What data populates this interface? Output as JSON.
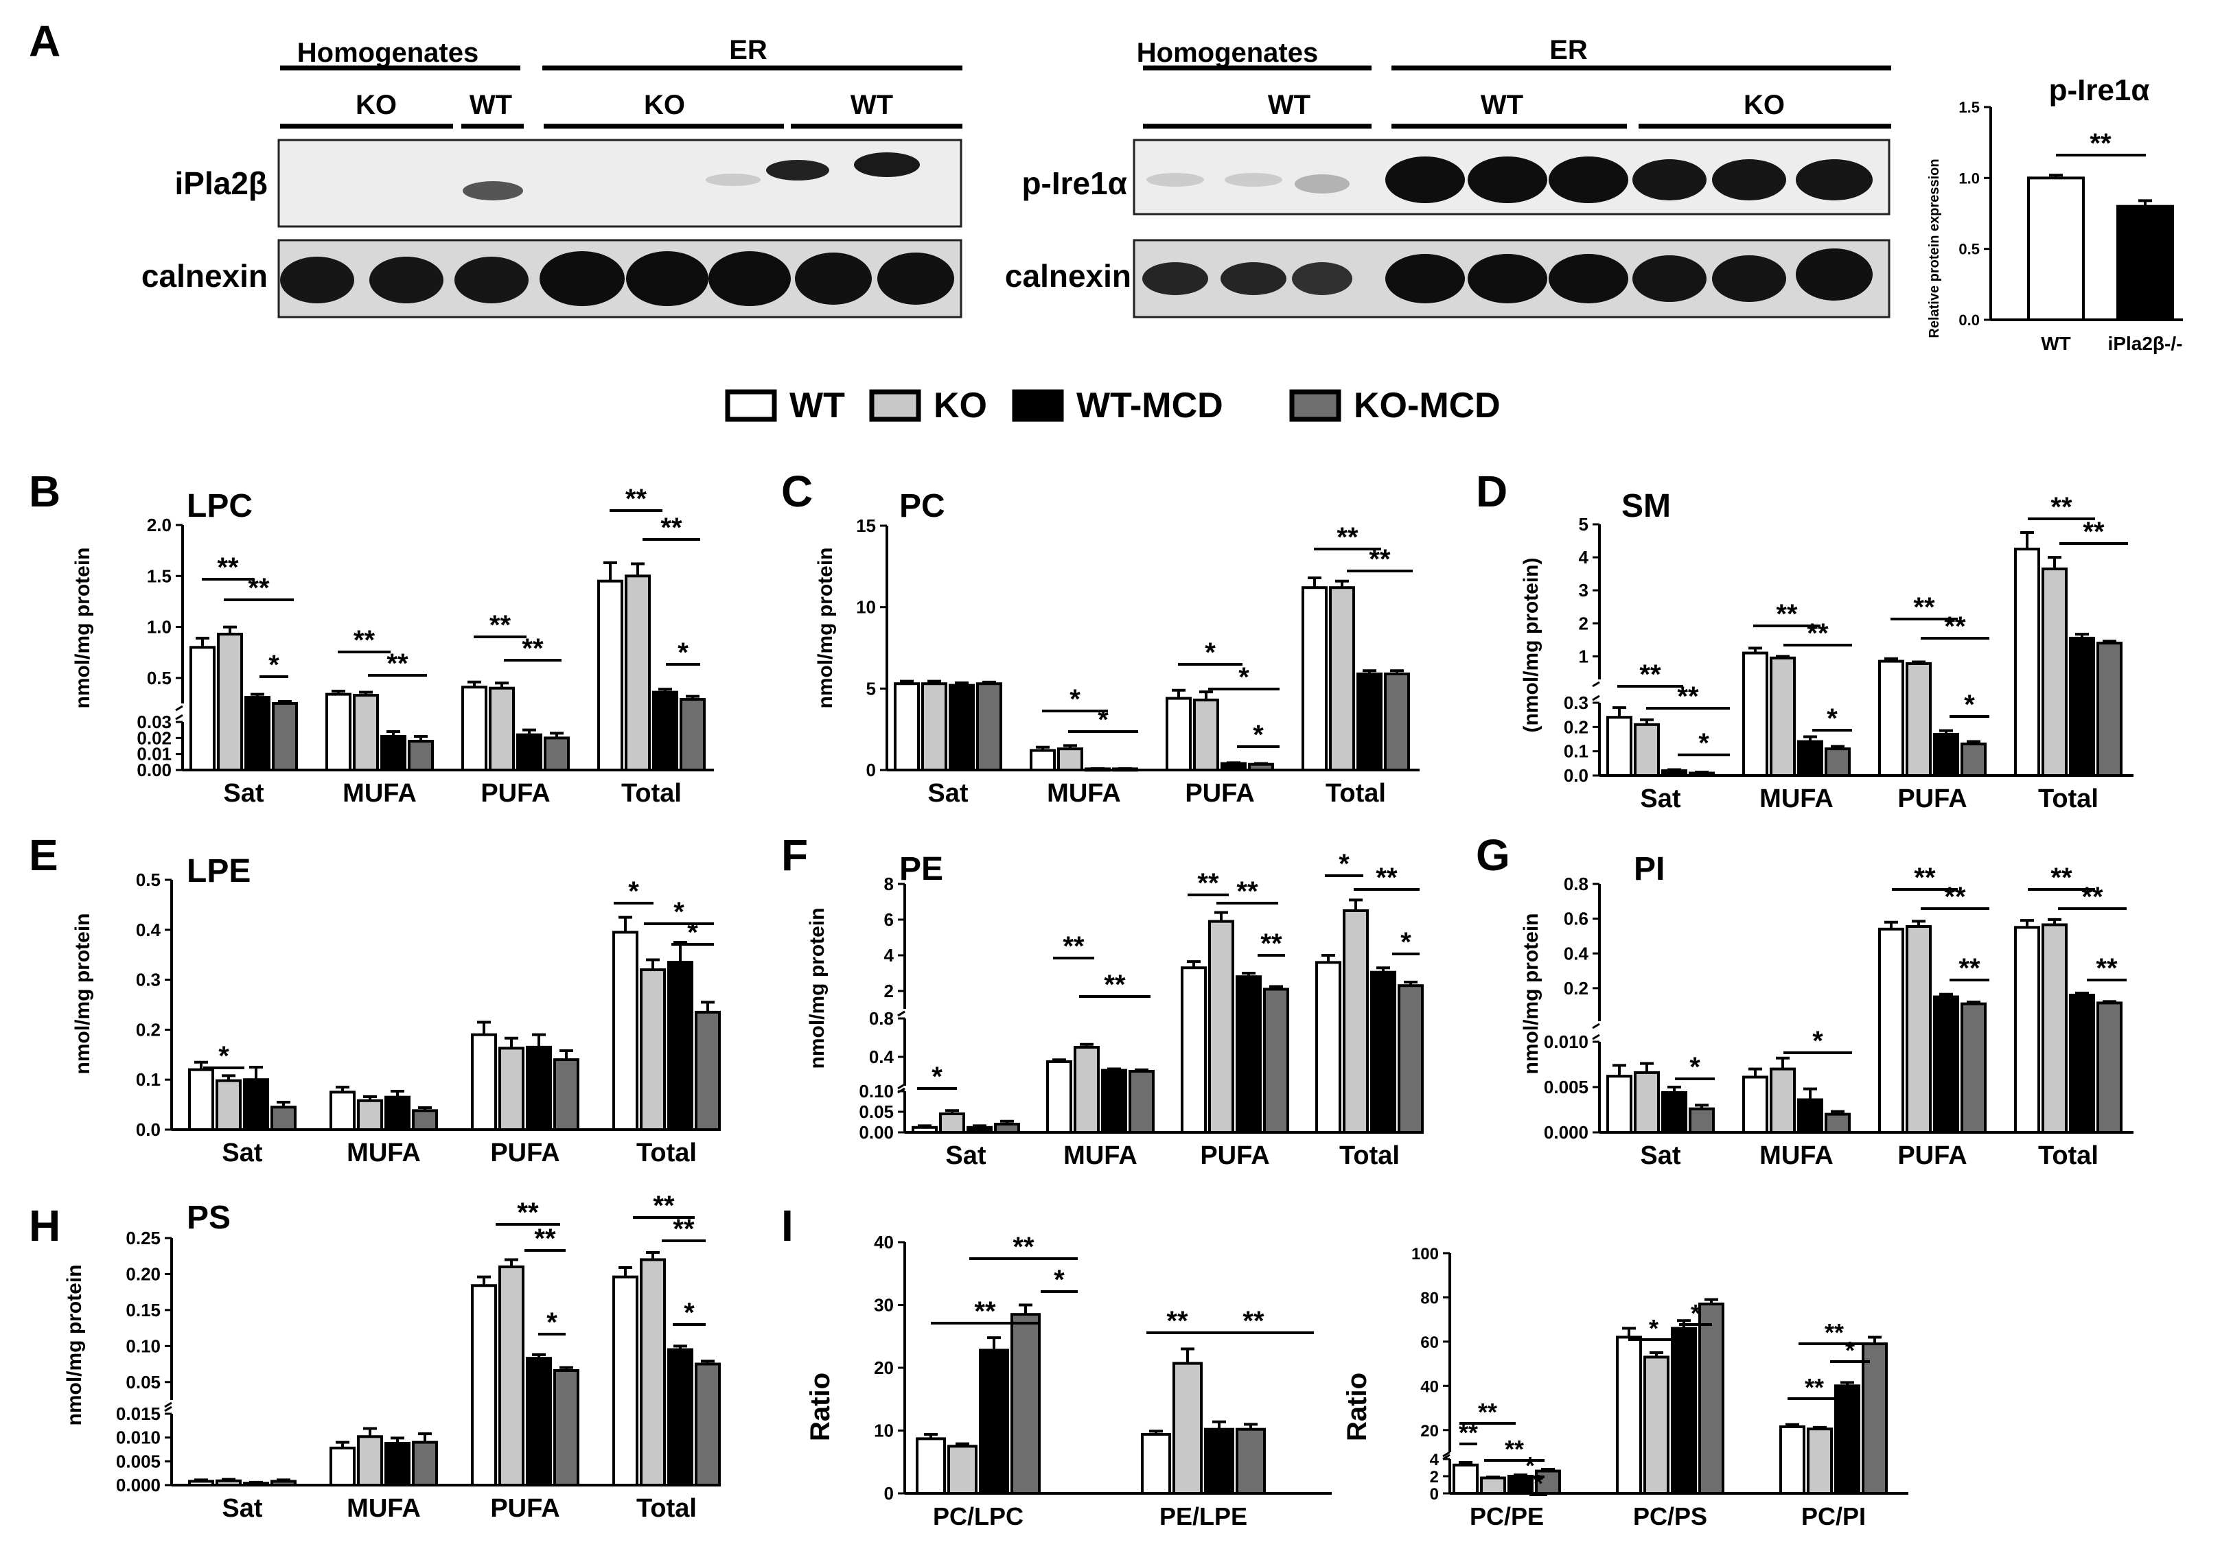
{
  "figure": {
    "panel_a_label": "A",
    "legend": [
      {
        "label": "WT",
        "fill": "#ffffff"
      },
      {
        "label": "KO",
        "fill": "#c8c8c8"
      },
      {
        "label": "WT-MCD",
        "fill": "#000000"
      },
      {
        "label": "KO-MCD",
        "fill": "#6e6e6e"
      }
    ],
    "blot1": {
      "header_homogenates": "Homogenates",
      "header_er": "ER",
      "sub_labels": [
        "KO",
        "WT",
        "KO",
        "WT"
      ],
      "row1_label": "iPla2β",
      "row2_label": "calnexin"
    },
    "blot2": {
      "header_homogenates": "Homogenates",
      "header_er": "ER",
      "sub_labels": [
        "WT",
        "WT",
        "KO"
      ],
      "row1_label": "p-Ire1α",
      "row2_label": "calnexin"
    }
  },
  "colors": {
    "WT": "#ffffff",
    "KO": "#c8c8c8",
    "WT-MCD": "#000000",
    "KO-MCD": "#6e6e6e",
    "axis": "#000000",
    "background": "#ffffff"
  },
  "chart_data": [
    {
      "id": "pire1a",
      "type": "bar",
      "title": "p-Ire1α",
      "ylabel": "Relative protein expression",
      "categories": [
        "WT",
        "iPla2β-/-"
      ],
      "values": [
        1.0,
        0.8
      ],
      "errors": [
        0.02,
        0.04
      ],
      "ylim": [
        0,
        1.5
      ],
      "yticks": [
        "0.0",
        "0.5",
        "1.0",
        "1.5"
      ],
      "fills": [
        "#ffffff",
        "#000000"
      ],
      "sig": [
        {
          "label": "**"
        }
      ]
    },
    {
      "id": "B",
      "panel": "B",
      "type": "bar",
      "title": "LPC",
      "ylabel": "nmol/mg protein",
      "xlabel": "",
      "categories": [
        "Sat",
        "MUFA",
        "PUFA",
        "Total"
      ],
      "series": [
        {
          "name": "WT",
          "values": [
            0.8,
            0.34,
            0.41,
            1.45
          ],
          "errors": [
            0.09,
            0.03,
            0.05,
            0.18
          ]
        },
        {
          "name": "KO",
          "values": [
            0.93,
            0.33,
            0.4,
            1.5
          ],
          "errors": [
            0.07,
            0.03,
            0.05,
            0.12
          ]
        },
        {
          "name": "WT-MCD",
          "values": [
            0.31,
            0.021,
            0.022,
            0.36
          ],
          "errors": [
            0.03,
            0.003,
            0.003,
            0.03
          ]
        },
        {
          "name": "KO-MCD",
          "values": [
            0.25,
            0.018,
            0.02,
            0.29
          ],
          "errors": [
            0.02,
            0.003,
            0.003,
            0.03
          ]
        }
      ],
      "y_break": true,
      "ylim_lower": [
        0,
        0.03
      ],
      "ylim_upper": [
        0.25,
        2.0
      ],
      "yticks_lower": [
        "0.00",
        "0.01",
        "0.02",
        "0.03"
      ],
      "yticks_upper": [
        "0.5",
        "1.0",
        "1.5",
        "2.0"
      ],
      "sig": [
        "**",
        "**",
        "*",
        "**",
        "**",
        "**",
        "**",
        "**",
        "**",
        "*"
      ]
    },
    {
      "id": "C",
      "panel": "C",
      "type": "bar",
      "title": "PC",
      "ylabel": "nmol/mg protein",
      "xlabel": "",
      "categories": [
        "Sat",
        "MUFA",
        "PUFA",
        "Total"
      ],
      "series": [
        {
          "name": "WT",
          "values": [
            5.3,
            1.2,
            4.4,
            11.2
          ],
          "errors": [
            0.15,
            0.2,
            0.5,
            0.6
          ]
        },
        {
          "name": "KO",
          "values": [
            5.3,
            1.3,
            4.3,
            11.2
          ],
          "errors": [
            0.15,
            0.2,
            0.5,
            0.4
          ]
        },
        {
          "name": "WT-MCD",
          "values": [
            5.2,
            0.07,
            0.4,
            5.9
          ],
          "errors": [
            0.15,
            0.02,
            0.05,
            0.2
          ]
        },
        {
          "name": "KO-MCD",
          "values": [
            5.3,
            0.07,
            0.35,
            5.9
          ],
          "errors": [
            0.1,
            0.02,
            0.05,
            0.2
          ]
        }
      ],
      "ylim": [
        0,
        15
      ],
      "yticks": [
        "0",
        "5",
        "10",
        "15"
      ],
      "sig": [
        "*",
        "*",
        "*",
        "*",
        "*",
        "**",
        "**"
      ]
    },
    {
      "id": "D",
      "panel": "D",
      "type": "bar",
      "title": "SM",
      "ylabel": "(nmol/mg protein)",
      "xlabel": "",
      "categories": [
        "Sat",
        "MUFA",
        "PUFA",
        "Total"
      ],
      "series": [
        {
          "name": "WT",
          "values": [
            0.24,
            1.1,
            0.85,
            4.25
          ],
          "errors": [
            0.04,
            0.15,
            0.08,
            0.5
          ]
        },
        {
          "name": "KO",
          "values": [
            0.21,
            0.95,
            0.78,
            3.65
          ],
          "errors": [
            0.02,
            0.05,
            0.05,
            0.35
          ]
        },
        {
          "name": "WT-MCD",
          "values": [
            0.02,
            0.14,
            0.17,
            1.55
          ],
          "errors": [
            0.004,
            0.02,
            0.015,
            0.12
          ]
        },
        {
          "name": "KO-MCD",
          "values": [
            0.01,
            0.11,
            0.13,
            1.4
          ],
          "errors": [
            0.004,
            0.01,
            0.01,
            0.06
          ]
        }
      ],
      "y_break": true,
      "ylim_lower": [
        0,
        0.3
      ],
      "ylim_upper": [
        0.3,
        5
      ],
      "yticks_lower": [
        "0.0",
        "0.1",
        "0.2",
        "0.3"
      ],
      "yticks_upper": [
        "1",
        "2",
        "3",
        "4",
        "5"
      ],
      "sig": [
        "**",
        "**",
        "*",
        "**",
        "**",
        "*",
        "**",
        "**",
        "*",
        "**",
        "**"
      ]
    },
    {
      "id": "E",
      "panel": "E",
      "type": "bar",
      "title": "LPE",
      "ylabel": "nmol/mg protein",
      "xlabel": "",
      "categories": [
        "Sat",
        "MUFA",
        "PUFA",
        "Total"
      ],
      "series": [
        {
          "name": "WT",
          "values": [
            0.12,
            0.075,
            0.19,
            0.395
          ],
          "errors": [
            0.015,
            0.01,
            0.025,
            0.03
          ]
        },
        {
          "name": "KO",
          "values": [
            0.098,
            0.058,
            0.163,
            0.32
          ],
          "errors": [
            0.01,
            0.008,
            0.02,
            0.02
          ]
        },
        {
          "name": "WT-MCD",
          "values": [
            0.1,
            0.065,
            0.165,
            0.335
          ],
          "errors": [
            0.025,
            0.012,
            0.025,
            0.04
          ]
        },
        {
          "name": "KO-MCD",
          "values": [
            0.045,
            0.038,
            0.14,
            0.235
          ],
          "errors": [
            0.01,
            0.006,
            0.018,
            0.02
          ]
        }
      ],
      "ylim": [
        0,
        0.5
      ],
      "yticks": [
        "0.0",
        "0.1",
        "0.2",
        "0.3",
        "0.4",
        "0.5"
      ],
      "sig": [
        "*",
        "*",
        "*",
        "*"
      ]
    },
    {
      "id": "F",
      "panel": "F",
      "type": "bar",
      "title": "PE",
      "ylabel": "nmol/mg protein",
      "xlabel": "",
      "categories": [
        "Sat",
        "MUFA",
        "PUFA",
        "Total"
      ],
      "series": [
        {
          "name": "WT",
          "values": [
            0.012,
            0.35,
            3.3,
            3.6
          ],
          "errors": [
            0.004,
            0.02,
            0.35,
            0.4
          ]
        },
        {
          "name": "KO",
          "values": [
            0.045,
            0.5,
            5.9,
            6.5
          ],
          "errors": [
            0.008,
            0.03,
            0.5,
            0.6
          ]
        },
        {
          "name": "WT-MCD",
          "values": [
            0.012,
            0.26,
            2.8,
            3.05
          ],
          "errors": [
            0.004,
            0.015,
            0.2,
            0.25
          ]
        },
        {
          "name": "KO-MCD",
          "values": [
            0.02,
            0.25,
            2.1,
            2.3
          ],
          "errors": [
            0.007,
            0.015,
            0.15,
            0.2
          ]
        }
      ],
      "y_break": true,
      "ylim_lower": [
        0,
        0.1
      ],
      "ylim_mid": [
        0.1,
        0.8
      ],
      "ylim_upper": [
        1,
        8
      ],
      "yticks_lower": [
        "0.00",
        "0.05",
        "0.10"
      ],
      "yticks_mid": [
        "0.4",
        "0.8"
      ],
      "yticks_upper": [
        "2",
        "4",
        "6",
        "8"
      ],
      "sig": [
        "*",
        "**",
        "**",
        "**",
        "**",
        "**",
        "*",
        "**",
        "*"
      ]
    },
    {
      "id": "G",
      "panel": "G",
      "type": "bar",
      "title": "PI",
      "ylabel": "nmol/mg protein",
      "xlabel": "",
      "categories": [
        "Sat",
        "MUFA",
        "PUFA",
        "Total"
      ],
      "series": [
        {
          "name": "WT",
          "values": [
            0.0062,
            0.0061,
            0.54,
            0.55
          ],
          "errors": [
            0.0012,
            0.0009,
            0.04,
            0.04
          ]
        },
        {
          "name": "KO",
          "values": [
            0.0066,
            0.007,
            0.555,
            0.565
          ],
          "errors": [
            0.001,
            0.0012,
            0.03,
            0.03
          ]
        },
        {
          "name": "WT-MCD",
          "values": [
            0.0044,
            0.0036,
            0.15,
            0.16
          ],
          "errors": [
            0.0006,
            0.0012,
            0.015,
            0.012
          ]
        },
        {
          "name": "KO-MCD",
          "values": [
            0.0026,
            0.002,
            0.11,
            0.115
          ],
          "errors": [
            0.0004,
            0.0003,
            0.01,
            0.008
          ]
        }
      ],
      "y_break": true,
      "ylim_lower": [
        0,
        0.01
      ],
      "ylim_upper": [
        0.01,
        0.8
      ],
      "yticks_lower": [
        "0.000",
        "0.005",
        "0.010"
      ],
      "yticks_upper": [
        "0.2",
        "0.4",
        "0.6",
        "0.8"
      ],
      "sig": [
        "*",
        "*",
        "**",
        "**",
        "**",
        "**",
        "**",
        "**"
      ]
    },
    {
      "id": "H",
      "panel": "H",
      "type": "bar",
      "title": "PS",
      "ylabel": "nmol/mg protein",
      "xlabel": "",
      "categories": [
        "Sat",
        "MUFA",
        "PUFA",
        "Total"
      ],
      "series": [
        {
          "name": "WT",
          "values": [
            0.0008,
            0.0078,
            0.184,
            0.196
          ],
          "errors": [
            0.0003,
            0.0012,
            0.012,
            0.013
          ]
        },
        {
          "name": "KO",
          "values": [
            0.0009,
            0.0102,
            0.21,
            0.22
          ],
          "errors": [
            0.0003,
            0.0017,
            0.01,
            0.01
          ]
        },
        {
          "name": "WT-MCD",
          "values": [
            0.0004,
            0.0088,
            0.083,
            0.095
          ],
          "errors": [
            0.0002,
            0.0011,
            0.005,
            0.005
          ]
        },
        {
          "name": "KO-MCD",
          "values": [
            0.0008,
            0.009,
            0.066,
            0.075
          ],
          "errors": [
            0.0003,
            0.0018,
            0.004,
            0.004
          ]
        }
      ],
      "y_break": true,
      "ylim_lower": [
        0,
        0.015
      ],
      "ylim_upper": [
        0.025,
        0.25
      ],
      "yticks_lower": [
        "0.000",
        "0.005",
        "0.010",
        "0.015"
      ],
      "yticks_upper": [
        "0.05",
        "0.10",
        "0.15",
        "0.20",
        "0.25"
      ],
      "sig": [
        "**",
        "**",
        "*",
        "**",
        "**",
        "*"
      ]
    },
    {
      "id": "I1",
      "panel": "I",
      "type": "bar",
      "title": "",
      "ylabel": "Ratio",
      "xlabel": "",
      "categories": [
        "PC/LPC",
        "PE/LPE"
      ],
      "series": [
        {
          "name": "WT",
          "values": [
            8.7,
            9.4
          ],
          "errors": [
            0.7,
            0.5
          ]
        },
        {
          "name": "KO",
          "values": [
            7.5,
            20.7
          ],
          "errors": [
            0.4,
            2.3
          ]
        },
        {
          "name": "WT-MCD",
          "values": [
            22.8,
            10.2
          ],
          "errors": [
            2.0,
            1.2
          ]
        },
        {
          "name": "KO-MCD",
          "values": [
            28.5,
            10.2
          ],
          "errors": [
            1.5,
            0.8
          ]
        }
      ],
      "ylim": [
        0,
        40
      ],
      "yticks": [
        "0",
        "10",
        "20",
        "30",
        "40"
      ],
      "sig": [
        "**",
        "*",
        "**",
        "**",
        "**"
      ]
    },
    {
      "id": "I2",
      "panel": "I",
      "type": "bar",
      "title": "",
      "ylabel": "Ratio",
      "xlabel": "",
      "categories": [
        "PC/PE",
        "PC/PS",
        "PC/PI"
      ],
      "series": [
        {
          "name": "WT",
          "values": [
            3.3,
            62,
            21.5
          ],
          "errors": [
            0.3,
            4,
            1.0
          ]
        },
        {
          "name": "KO",
          "values": [
            1.8,
            53,
            20.5
          ],
          "errors": [
            0.1,
            2,
            0.7
          ]
        },
        {
          "name": "WT-MCD",
          "values": [
            2.0,
            66,
            40
          ],
          "errors": [
            0.15,
            3.5,
            1.5
          ]
        },
        {
          "name": "KO-MCD",
          "values": [
            2.6,
            77,
            59
          ],
          "errors": [
            0.2,
            2,
            3
          ]
        }
      ],
      "y_break": true,
      "ylim_lower": [
        0,
        4
      ],
      "ylim_upper": [
        10,
        100
      ],
      "yticks_lower": [
        "0",
        "2",
        "4"
      ],
      "yticks_upper": [
        "20",
        "40",
        "60",
        "80",
        "100"
      ],
      "sig": [
        "**",
        "**",
        "**",
        "*",
        "*",
        "*",
        "*",
        "**",
        "**",
        "*"
      ]
    }
  ]
}
